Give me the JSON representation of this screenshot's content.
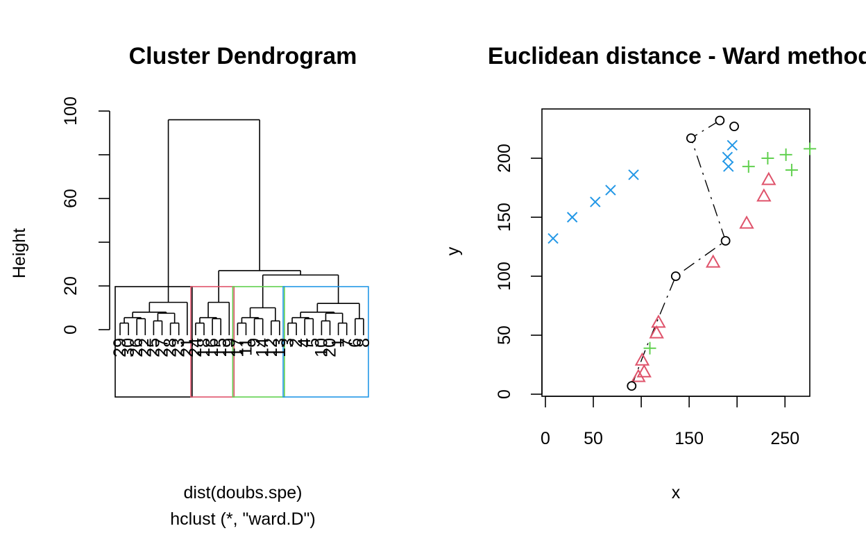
{
  "chart_data": [
    {
      "type": "dendrogram",
      "title": "Cluster Dendrogram",
      "ylabel": "Height",
      "xlabel": "dist(doubs.spe)",
      "sublabel": "hclust (*, \"ward.D\")",
      "ylim": [
        0,
        100
      ],
      "yticks": [
        0,
        20,
        60,
        100
      ],
      "leaves": [
        "29",
        "30",
        "26",
        "22",
        "25",
        "27",
        "28",
        "23",
        "21",
        "24",
        "18",
        "16",
        "15",
        "19",
        "17",
        "11",
        "9",
        "14",
        "12",
        "13",
        "3",
        "2",
        "4",
        "5",
        "10",
        "20",
        "1",
        "7",
        "6",
        "8"
      ],
      "clusters": [
        {
          "color": "#000000",
          "top_height": 12.5
        },
        {
          "color": "#DF536B",
          "top_height": 12.5
        },
        {
          "color": "#61D04F",
          "top_height": 10
        },
        {
          "color": "#2297E6",
          "top_height": 12
        }
      ],
      "merge_heights": {
        "root": 96,
        "right_group": 27,
        "green_blue": 25
      }
    },
    {
      "type": "scatter",
      "title": "Euclidean distance - Ward method",
      "xlabel": "x",
      "ylabel": "y",
      "xticks": [
        0,
        50,
        150,
        250
      ],
      "yticks": [
        0,
        50,
        100,
        150,
        200
      ],
      "path": [
        [
          90,
          7
        ],
        [
          105,
          39
        ],
        [
          136,
          100
        ],
        [
          188,
          130
        ],
        [
          152,
          217
        ],
        [
          182,
          232
        ]
      ],
      "series": [
        {
          "color": "#2297E6",
          "marker": "x",
          "points": [
            [
              8,
              132
            ],
            [
              28,
              150
            ],
            [
              52,
              163
            ],
            [
              68,
              173
            ],
            [
              92,
              186
            ],
            [
              190,
              201
            ],
            [
              191,
              193
            ],
            [
              195,
              211
            ]
          ]
        },
        {
          "color": "#61D04F",
          "marker": "+",
          "points": [
            [
              109,
              39
            ],
            [
              212,
              193
            ],
            [
              232,
              200
            ],
            [
              251,
              203
            ],
            [
              257,
              190
            ],
            [
              276,
              208
            ]
          ]
        },
        {
          "color": "#DF536B",
          "marker": "triangle",
          "points": [
            [
              97,
              15
            ],
            [
              103,
              19
            ],
            [
              101,
              29
            ],
            [
              116,
              52
            ],
            [
              118,
              61
            ],
            [
              175,
              112
            ],
            [
              210,
              145
            ],
            [
              228,
              168
            ],
            [
              233,
              182
            ]
          ]
        },
        {
          "color": "#000000",
          "marker": "circle",
          "points": [
            [
              90,
              7
            ],
            [
              136,
              100
            ],
            [
              188,
              130
            ],
            [
              152,
              217
            ],
            [
              182,
              232
            ],
            [
              197,
              227
            ]
          ]
        }
      ]
    }
  ]
}
